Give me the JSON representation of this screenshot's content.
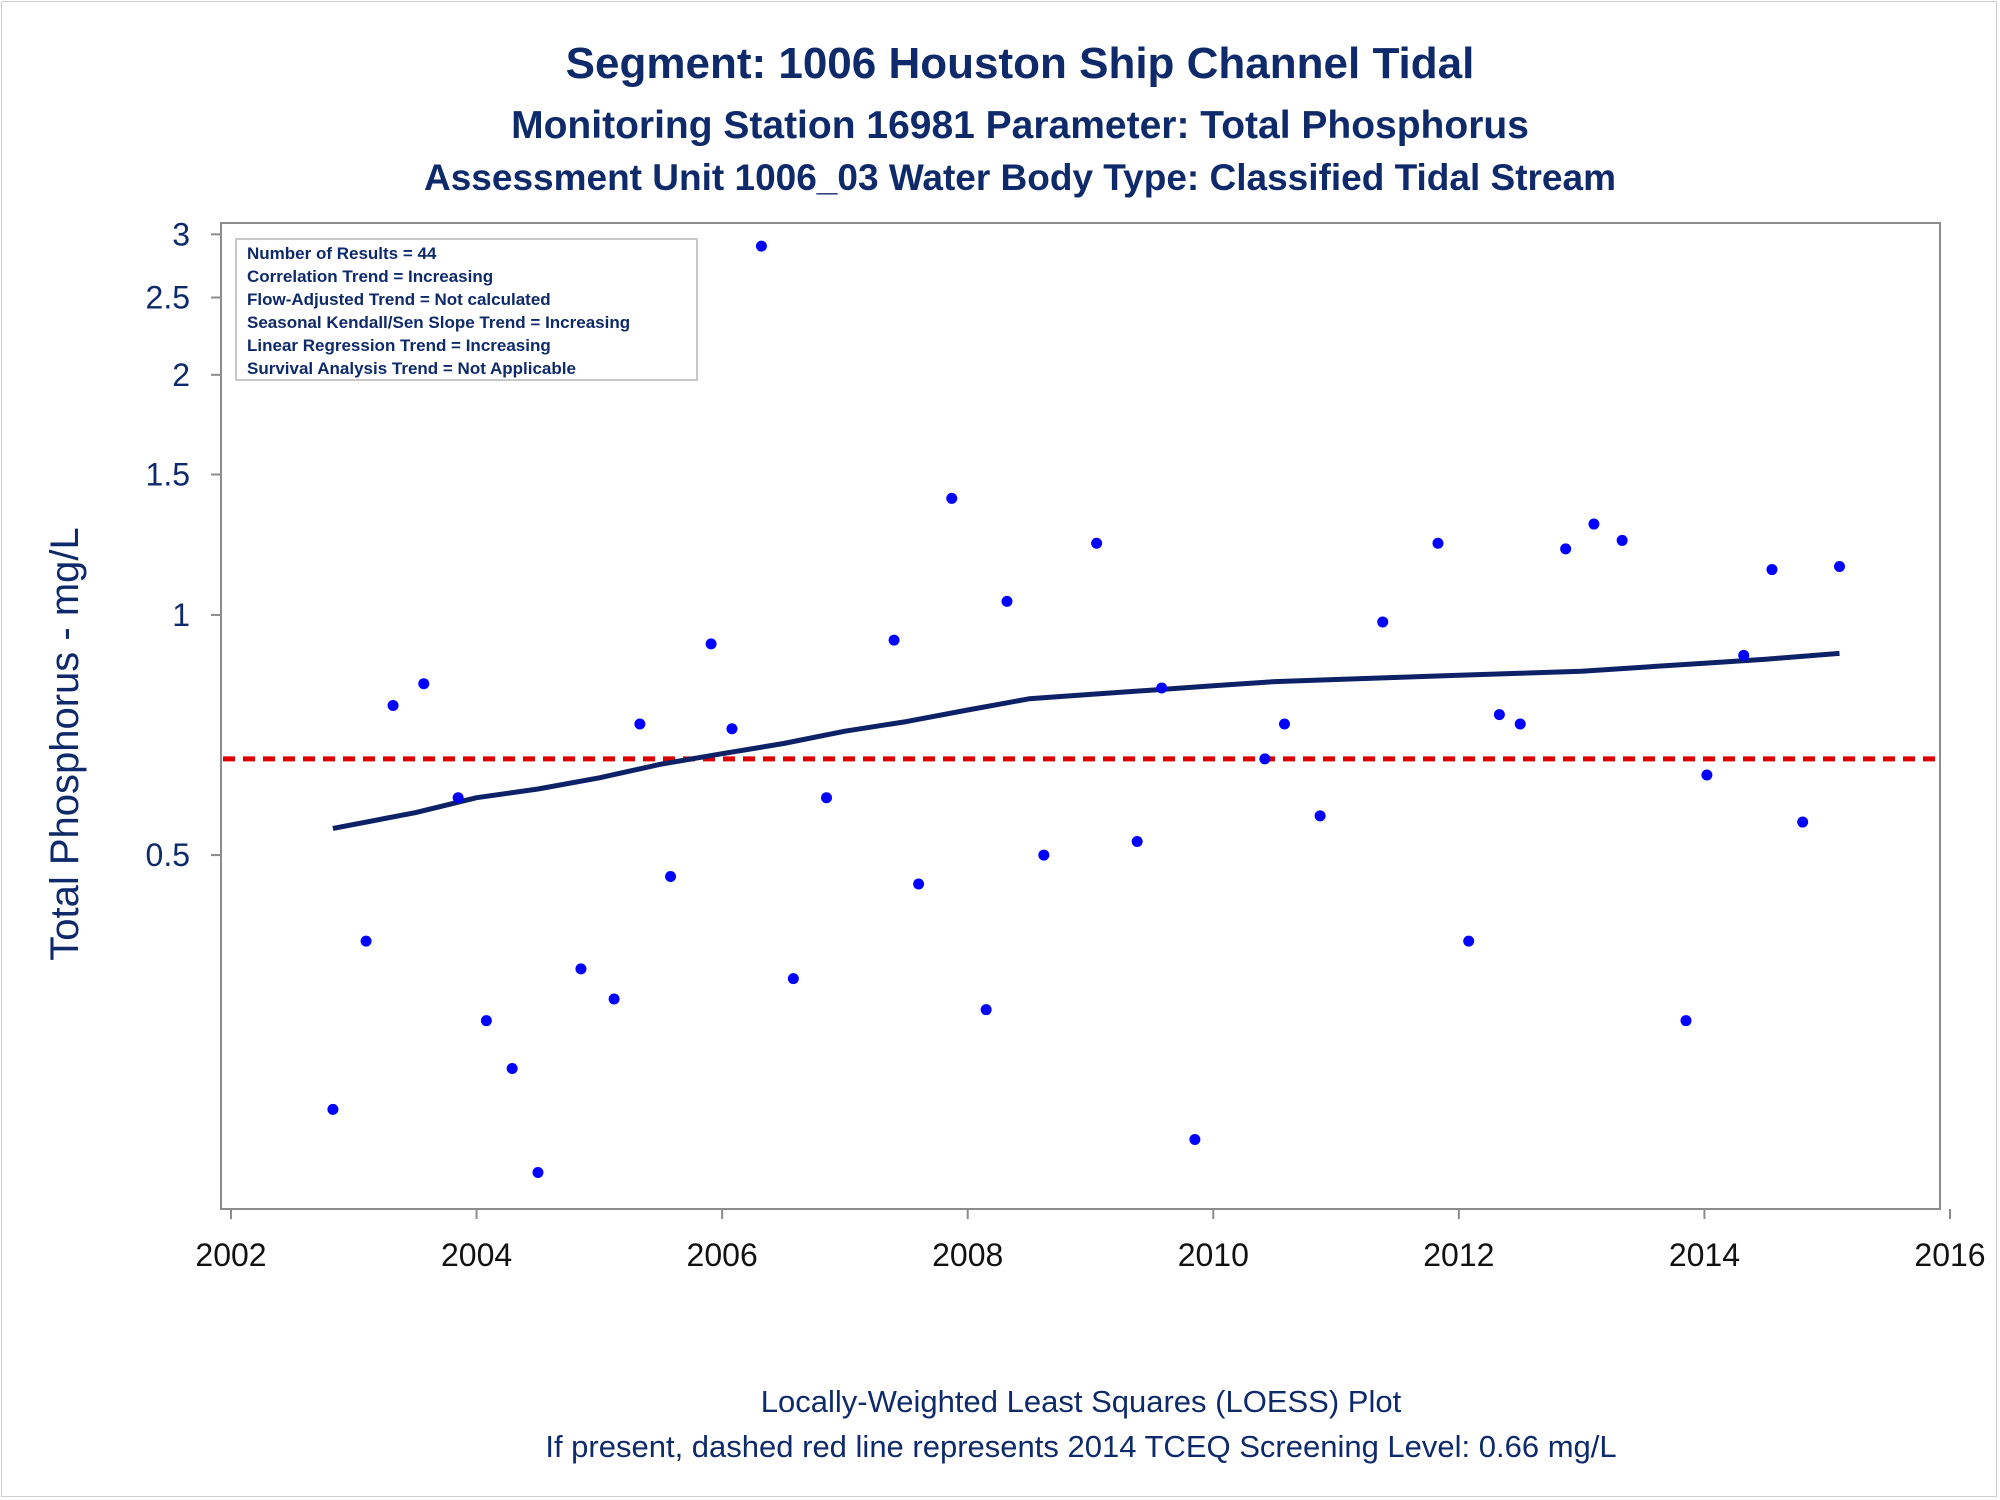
{
  "chart_data": {
    "type": "scatter",
    "title": "Segment: 1006  Houston Ship Channel Tidal",
    "subtitle": "Monitoring Station 16981 Parameter: Total Phosphorus",
    "subtitle2": "Assessment Unit 1006_03   Water Body Type: Classified Tidal Stream",
    "xlabel": "",
    "ylabel": "Total Phosphorus - mg/L",
    "footer": [
      "Locally-Weighted Least Squares (LOESS) Plot",
      "If present, dashed red line represents 2014 TCEQ Screening Level: 0.66 mg/L"
    ],
    "x_scale": "linear",
    "y_scale": "log",
    "xlim": [
      2002,
      2016
    ],
    "ylim": [
      0.18,
      3.1
    ],
    "x_ticks": [
      2002,
      2004,
      2006,
      2008,
      2010,
      2012,
      2014,
      2016
    ],
    "x_tick_labels": [
      "2002",
      "2004",
      "2006",
      "2008",
      "2010",
      "2012",
      "2014",
      "2016"
    ],
    "y_ticks": [
      0.5,
      1,
      1.5,
      2,
      2.5,
      3
    ],
    "y_tick_labels": [
      "0.5",
      "1",
      "1.5",
      "2",
      "2.5",
      "3"
    ],
    "info_box": [
      "Number of Results = 44",
      "Correlation Trend = Increasing",
      "Flow-Adjusted Trend = Not calculated",
      "Seasonal Kendall/Sen Slope Trend = Increasing",
      "Linear Regression Trend = Increasing",
      "Survival Analysis Trend = Not Applicable"
    ],
    "screening_level": 0.66,
    "points": [
      {
        "x": 2002.83,
        "y": 0.24
      },
      {
        "x": 2003.1,
        "y": 0.39
      },
      {
        "x": 2003.32,
        "y": 0.77
      },
      {
        "x": 2003.57,
        "y": 0.82
      },
      {
        "x": 2003.85,
        "y": 0.59
      },
      {
        "x": 2004.08,
        "y": 0.31
      },
      {
        "x": 2004.29,
        "y": 0.27
      },
      {
        "x": 2004.5,
        "y": 0.2
      },
      {
        "x": 2004.85,
        "y": 0.36
      },
      {
        "x": 2005.12,
        "y": 0.33
      },
      {
        "x": 2005.33,
        "y": 0.73
      },
      {
        "x": 2005.58,
        "y": 0.47
      },
      {
        "x": 2005.91,
        "y": 0.92
      },
      {
        "x": 2006.08,
        "y": 0.72
      },
      {
        "x": 2006.32,
        "y": 2.9
      },
      {
        "x": 2006.58,
        "y": 0.35
      },
      {
        "x": 2006.85,
        "y": 0.59
      },
      {
        "x": 2007.4,
        "y": 0.93
      },
      {
        "x": 2007.6,
        "y": 0.46
      },
      {
        "x": 2007.87,
        "y": 1.4
      },
      {
        "x": 2008.15,
        "y": 0.32
      },
      {
        "x": 2008.32,
        "y": 1.04
      },
      {
        "x": 2008.62,
        "y": 0.5
      },
      {
        "x": 2009.05,
        "y": 1.23
      },
      {
        "x": 2009.38,
        "y": 0.52
      },
      {
        "x": 2009.58,
        "y": 0.81
      },
      {
        "x": 2009.85,
        "y": 0.22
      },
      {
        "x": 2010.42,
        "y": 0.66
      },
      {
        "x": 2010.58,
        "y": 0.73
      },
      {
        "x": 2010.87,
        "y": 0.56
      },
      {
        "x": 2011.38,
        "y": 0.98
      },
      {
        "x": 2011.83,
        "y": 1.23
      },
      {
        "x": 2012.08,
        "y": 0.39
      },
      {
        "x": 2012.33,
        "y": 0.75
      },
      {
        "x": 2012.5,
        "y": 0.73
      },
      {
        "x": 2012.87,
        "y": 1.21
      },
      {
        "x": 2013.1,
        "y": 1.3
      },
      {
        "x": 2013.33,
        "y": 1.24
      },
      {
        "x": 2013.85,
        "y": 0.31
      },
      {
        "x": 2014.02,
        "y": 0.63
      },
      {
        "x": 2014.32,
        "y": 0.89
      },
      {
        "x": 2014.55,
        "y": 1.14
      },
      {
        "x": 2014.8,
        "y": 0.55
      },
      {
        "x": 2015.1,
        "y": 1.15
      }
    ],
    "loess": [
      {
        "x": 2002.83,
        "y": 0.54
      },
      {
        "x": 2003.5,
        "y": 0.565
      },
      {
        "x": 2004.0,
        "y": 0.59
      },
      {
        "x": 2004.5,
        "y": 0.605
      },
      {
        "x": 2005.0,
        "y": 0.625
      },
      {
        "x": 2005.5,
        "y": 0.65
      },
      {
        "x": 2006.0,
        "y": 0.67
      },
      {
        "x": 2006.5,
        "y": 0.69
      },
      {
        "x": 2007.0,
        "y": 0.715
      },
      {
        "x": 2007.5,
        "y": 0.735
      },
      {
        "x": 2008.0,
        "y": 0.76
      },
      {
        "x": 2008.5,
        "y": 0.785
      },
      {
        "x": 2009.0,
        "y": 0.795
      },
      {
        "x": 2009.5,
        "y": 0.805
      },
      {
        "x": 2010.0,
        "y": 0.815
      },
      {
        "x": 2010.5,
        "y": 0.825
      },
      {
        "x": 2011.0,
        "y": 0.83
      },
      {
        "x": 2011.5,
        "y": 0.835
      },
      {
        "x": 2012.0,
        "y": 0.84
      },
      {
        "x": 2012.5,
        "y": 0.845
      },
      {
        "x": 2013.0,
        "y": 0.85
      },
      {
        "x": 2013.5,
        "y": 0.86
      },
      {
        "x": 2014.0,
        "y": 0.87
      },
      {
        "x": 2014.5,
        "y": 0.88
      },
      {
        "x": 2015.1,
        "y": 0.895
      }
    ],
    "grid": false,
    "colors": {
      "text": "#0f2a6b",
      "points": "#0000ff",
      "loess": "#0d2266",
      "screening": "#dd0000",
      "axis": "#8c8c8c"
    }
  }
}
